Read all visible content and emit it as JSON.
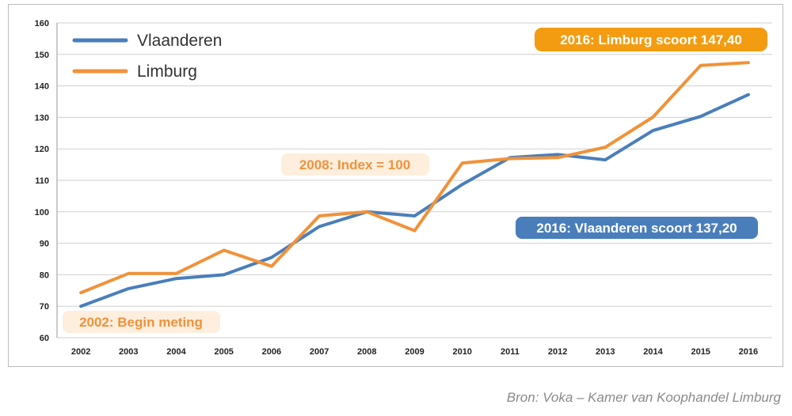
{
  "chart_data": {
    "type": "line",
    "x": [
      "2002",
      "2003",
      "2004",
      "2005",
      "2006",
      "2007",
      "2008",
      "2009",
      "2010",
      "2011",
      "2012",
      "2013",
      "2014",
      "2015",
      "2016"
    ],
    "series": [
      {
        "name": "Vlaanderen",
        "color": "#4a7ebb",
        "values": [
          70.0,
          75.6,
          78.8,
          80.0,
          85.5,
          95.3,
          100.0,
          98.7,
          108.7,
          117.2,
          118.2,
          116.5,
          125.8,
          130.3,
          137.2
        ]
      },
      {
        "name": "Limburg",
        "color": "#f0923a",
        "values": [
          74.3,
          80.4,
          80.4,
          87.8,
          82.7,
          98.7,
          100.0,
          94.0,
          115.5,
          116.9,
          117.2,
          120.5,
          130.1,
          146.5,
          147.4
        ]
      }
    ],
    "yticks": [
      "60",
      "70",
      "80",
      "90",
      "100",
      "110",
      "120",
      "130",
      "140",
      "150",
      "160"
    ],
    "ylim": [
      60,
      160
    ],
    "grid": true,
    "legend_position": "top-left",
    "annotations": [
      {
        "text": "2016: Limburg scoort 147,40",
        "style": "orange-solid"
      },
      {
        "text": "2008: Index = 100",
        "style": "orange-light"
      },
      {
        "text": "2016: Vlaanderen scoort 137,20",
        "style": "blue-solid"
      },
      {
        "text": "2002: Begin meting",
        "style": "orange-light"
      }
    ]
  },
  "source": "Bron: Voka – Kamer van Koophandel Limburg"
}
